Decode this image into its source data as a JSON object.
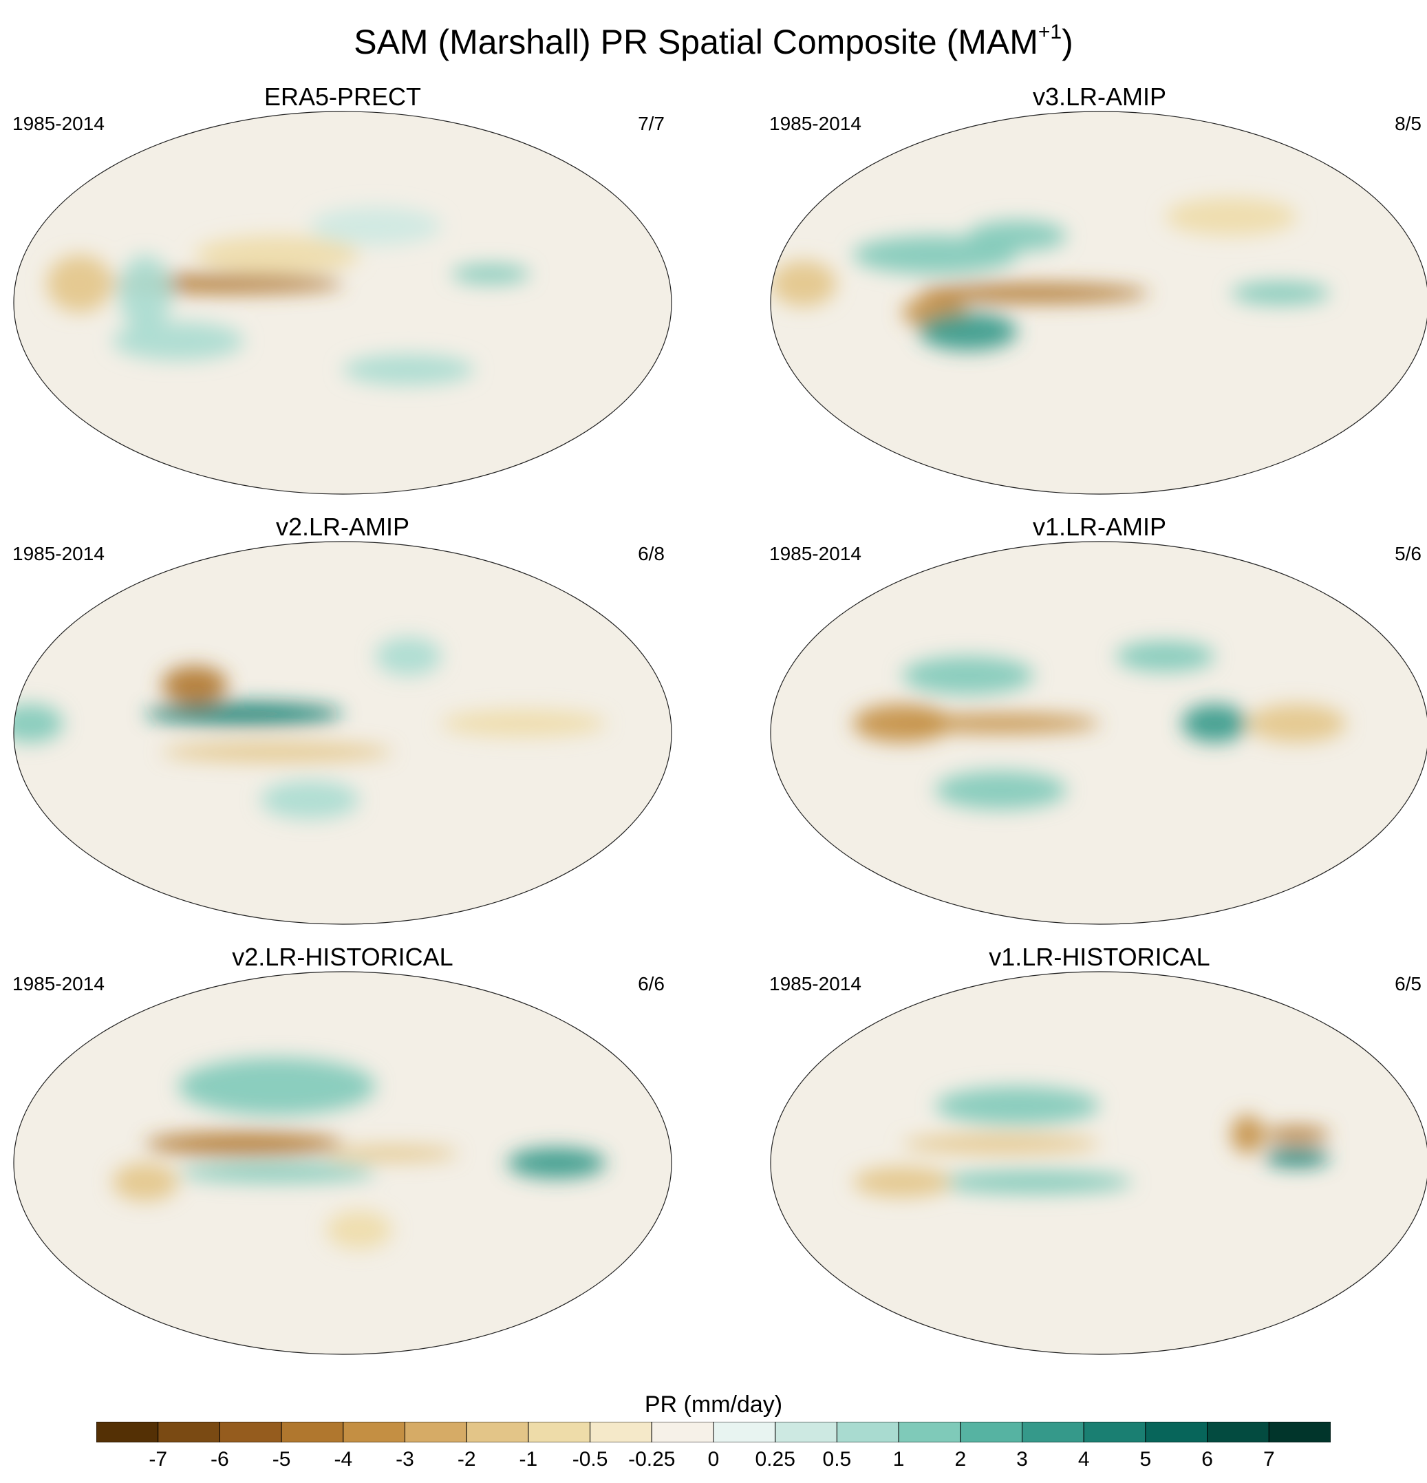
{
  "title": {
    "main": "SAM (Marshall) PR Spatial Composite (MAM",
    "sup": "+1",
    "close": ")"
  },
  "panels": [
    {
      "name": "ERA5-PRECT",
      "period": "1985-2014",
      "ratio": "7/7",
      "blobs": [
        [
          -0.35,
          0.1,
          0.35,
          0.05,
          -5
        ],
        [
          0.45,
          0.15,
          0.12,
          0.05,
          3
        ],
        [
          -0.6,
          0.05,
          0.08,
          0.2,
          2
        ],
        [
          -0.2,
          0.25,
          0.25,
          0.1,
          -2
        ],
        [
          0.2,
          -0.35,
          0.2,
          0.08,
          2
        ],
        [
          -0.8,
          0.1,
          0.1,
          0.15,
          -3
        ],
        [
          0.1,
          0.4,
          0.2,
          0.1,
          1
        ],
        [
          -0.5,
          -0.2,
          0.2,
          0.1,
          2
        ]
      ]
    },
    {
      "name": "v3.LR-AMIP",
      "period": "1985-2014",
      "ratio": "8/5",
      "blobs": [
        [
          -0.2,
          0.05,
          0.35,
          0.05,
          -5
        ],
        [
          -0.5,
          -0.05,
          0.1,
          0.08,
          -4
        ],
        [
          -0.4,
          -0.15,
          0.15,
          0.1,
          4
        ],
        [
          -0.5,
          0.25,
          0.25,
          0.1,
          3
        ],
        [
          0.55,
          0.05,
          0.15,
          0.06,
          3
        ],
        [
          0.4,
          0.45,
          0.2,
          0.1,
          -2
        ],
        [
          -0.9,
          0.1,
          0.1,
          0.12,
          -3
        ],
        [
          -0.25,
          0.35,
          0.15,
          0.08,
          3
        ]
      ]
    },
    {
      "name": "v2.LR-AMIP",
      "period": "1985-2014",
      "ratio": "6/8",
      "blobs": [
        [
          -0.3,
          0.1,
          0.3,
          0.06,
          5
        ],
        [
          -0.45,
          0.25,
          0.1,
          0.1,
          -5
        ],
        [
          -0.2,
          -0.1,
          0.35,
          0.05,
          -3
        ],
        [
          0.55,
          0.05,
          0.25,
          0.07,
          -2
        ],
        [
          -0.95,
          0.05,
          0.1,
          0.1,
          3
        ],
        [
          0.2,
          0.4,
          0.1,
          0.1,
          2
        ],
        [
          -0.1,
          -0.35,
          0.15,
          0.1,
          2
        ]
      ]
    },
    {
      "name": "v1.LR-AMIP",
      "period": "1985-2014",
      "ratio": "5/6",
      "blobs": [
        [
          -0.3,
          0.05,
          0.3,
          0.05,
          -4
        ],
        [
          -0.6,
          0.05,
          0.15,
          0.1,
          -4
        ],
        [
          0.35,
          0.05,
          0.1,
          0.1,
          4
        ],
        [
          -0.4,
          0.3,
          0.2,
          0.1,
          3
        ],
        [
          0.6,
          0.05,
          0.15,
          0.1,
          -3
        ],
        [
          0.2,
          0.4,
          0.15,
          0.08,
          3
        ],
        [
          -0.3,
          -0.3,
          0.2,
          0.1,
          3
        ]
      ]
    },
    {
      "name": "v2.LR-HISTORICAL",
      "period": "1985-2014",
      "ratio": "6/6",
      "blobs": [
        [
          -0.3,
          0.1,
          0.3,
          0.06,
          -5
        ],
        [
          0.15,
          0.05,
          0.2,
          0.04,
          -3
        ],
        [
          0.65,
          0.0,
          0.15,
          0.08,
          4
        ],
        [
          -0.2,
          0.4,
          0.3,
          0.15,
          3
        ],
        [
          -0.2,
          -0.05,
          0.3,
          0.05,
          3
        ],
        [
          -0.6,
          -0.1,
          0.1,
          0.1,
          -3
        ],
        [
          0.05,
          -0.35,
          0.1,
          0.1,
          -2
        ]
      ]
    },
    {
      "name": "v1.LR-HISTORICAL",
      "period": "1985-2014",
      "ratio": "6/5",
      "blobs": [
        [
          -0.3,
          0.1,
          0.3,
          0.05,
          -3
        ],
        [
          0.6,
          0.15,
          0.1,
          0.04,
          -5
        ],
        [
          0.6,
          0.03,
          0.1,
          0.05,
          5
        ],
        [
          -0.25,
          0.3,
          0.25,
          0.1,
          3
        ],
        [
          -0.2,
          -0.1,
          0.3,
          0.06,
          3
        ],
        [
          -0.6,
          -0.1,
          0.15,
          0.08,
          -3
        ],
        [
          0.45,
          0.15,
          0.05,
          0.1,
          -4
        ]
      ]
    }
  ],
  "colorbar": {
    "title": "PR (mm/day)",
    "labels": [
      "-7",
      "-6",
      "-5",
      "-4",
      "-3",
      "-2",
      "-1",
      "-0.5",
      "-0.25",
      "0",
      "0.25",
      "0.5",
      "1",
      "2",
      "3",
      "4",
      "5",
      "6",
      "7"
    ],
    "colors": [
      "#543005",
      "#7a4a13",
      "#955c1e",
      "#b0772e",
      "#c48f43",
      "#d6ab66",
      "#e3c588",
      "#eedca9",
      "#f5e9c9",
      "#f6f1e8",
      "#e8f4f1",
      "#cde9e2",
      "#a9dbd0",
      "#7fcab9",
      "#56b3a2",
      "#35998a",
      "#1a7f72",
      "#07655a",
      "#034b40",
      "#01352b"
    ]
  }
}
